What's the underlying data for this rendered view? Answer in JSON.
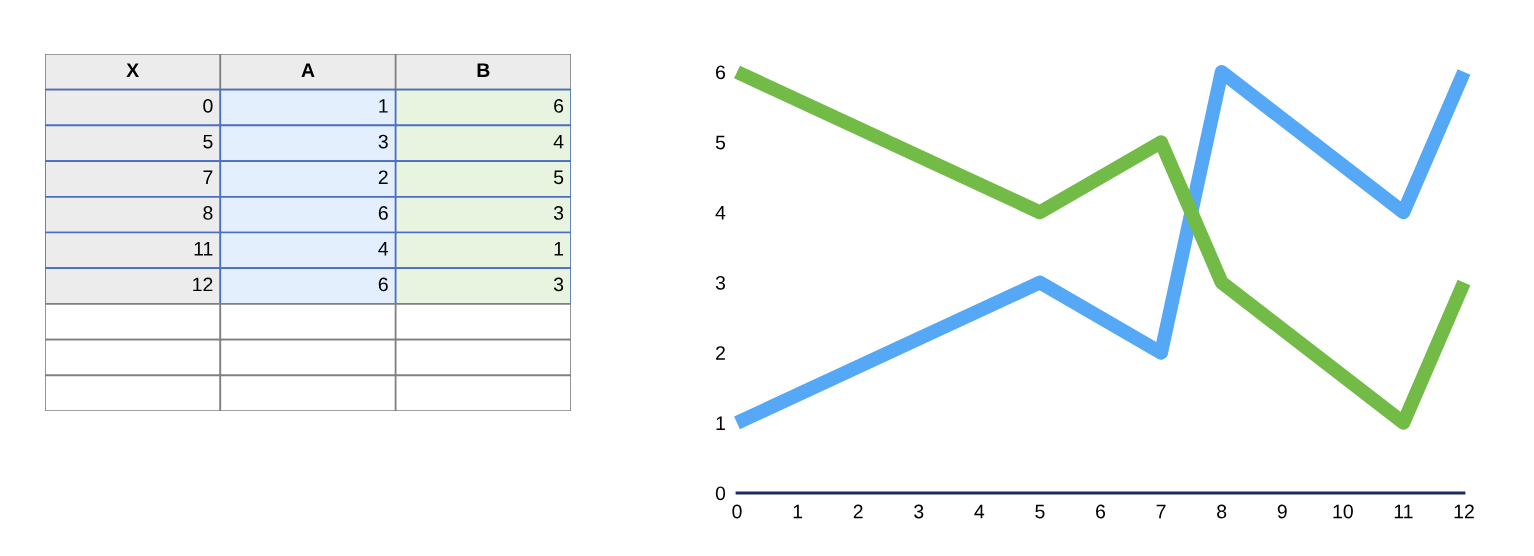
{
  "chart_data": [
    {
      "type": "heatmap",
      "ylabel": "X",
      "categories": [
        "A",
        "B"
      ],
      "y_categories": [
        "0",
        "5",
        "7",
        "8",
        "11",
        "12"
      ],
      "cells": [
        [
          1,
          6
        ],
        [
          3,
          4
        ],
        [
          2,
          5
        ],
        [
          6,
          3
        ],
        [
          4,
          1
        ],
        [
          6,
          3
        ]
      ],
      "colors": [
        "#e3effc",
        "#e8f4e0"
      ],
      "data_labels": true
    },
    {
      "type": "line",
      "x": [
        0,
        5,
        7,
        8,
        11,
        12
      ],
      "series": [
        {
          "color": "#55a8f5",
          "values": [
            1,
            3,
            2,
            6,
            4,
            6
          ]
        },
        {
          "color": "#72bb46",
          "values": [
            6,
            4,
            5,
            3,
            1,
            3
          ]
        }
      ],
      "xlim": [
        0,
        12
      ],
      "xticks": [
        0,
        1,
        2,
        3,
        4,
        5,
        6,
        7,
        8,
        9,
        10,
        11,
        12
      ],
      "ylim": [
        0,
        6
      ],
      "yticks": [
        0,
        1,
        2,
        3,
        4,
        5,
        6
      ],
      "grid": false,
      "legend": false,
      "marker": "none",
      "line_style": "solid"
    }
  ]
}
